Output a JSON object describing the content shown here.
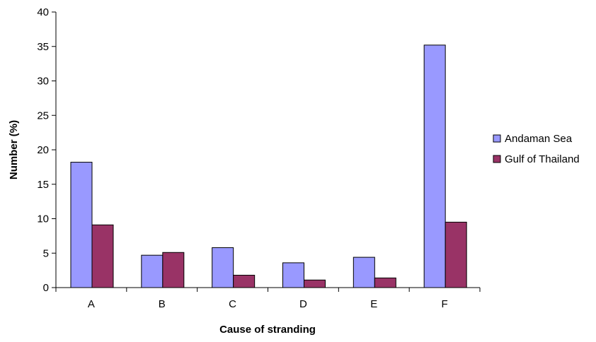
{
  "chart_data": {
    "type": "bar",
    "title": "",
    "xlabel": "Cause of stranding",
    "ylabel": "Number (%)",
    "categories": [
      "A",
      "B",
      "C",
      "D",
      "E",
      "F"
    ],
    "series": [
      {
        "name": "Andaman Sea",
        "color": "#9999ff",
        "values": [
          18.2,
          4.7,
          5.8,
          3.6,
          4.4,
          35.2
        ]
      },
      {
        "name": "Gulf of Thailand",
        "color": "#993366",
        "values": [
          9.1,
          5.1,
          1.8,
          1.1,
          1.4,
          9.5
        ]
      }
    ],
    "ylim": [
      0,
      40
    ],
    "yticks": [
      "0",
      "5",
      "10",
      "15",
      "20",
      "25",
      "30",
      "35",
      "40"
    ],
    "grid": false,
    "legend_position": "right"
  }
}
